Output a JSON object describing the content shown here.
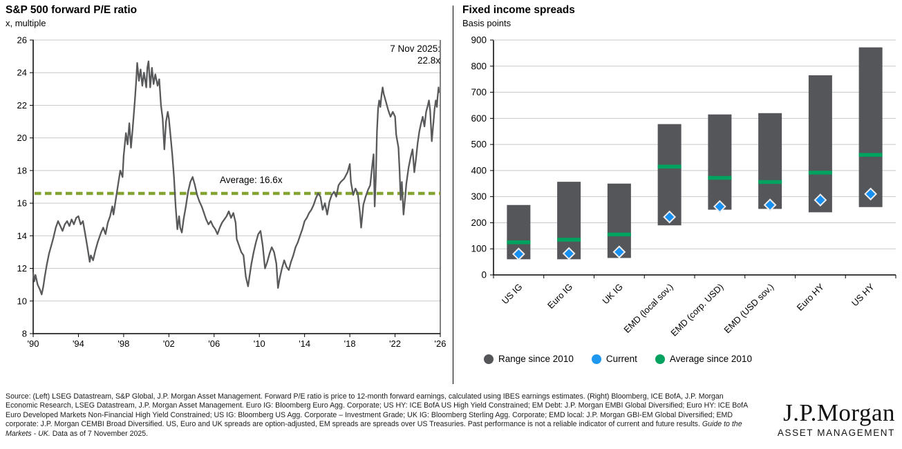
{
  "left_panel": {
    "title": "S&P 500 forward P/E ratio",
    "subtitle": "x, multiple",
    "annotation": {
      "line1": "7 Nov 2025:",
      "line2": "22.8x"
    },
    "average_label": "Average: 16.6x"
  },
  "right_panel": {
    "title": "Fixed income spreads",
    "subtitle": "Basis points",
    "legend": [
      {
        "label": "Range since 2010",
        "color": "#54565a"
      },
      {
        "label": "Current",
        "color": "#1e97f0"
      },
      {
        "label": "Average since 2010",
        "color": "#00a25f"
      }
    ]
  },
  "footer": {
    "source_text": "Source: (Left) LSEG Datastream, S&P Global, J.P. Morgan Asset Management. Forward P/E ratio is price to 12-month forward earnings, calculated using IBES earnings estimates. (Right) Bloomberg, ICE BofA, J.P. Morgan Economic Research, LSEG Datastream, J.P. Morgan Asset Management. Euro IG: Bloomberg Euro Agg. Corporate; US HY: ICE BofA US High Yield Constrained; EM Debt: J.P. Morgan EMBI Global Diversified; Euro HY: ICE BofA Euro Developed Markets Non-Financial High Yield Constrained; US IG: Bloomberg US Agg. Corporate – Investment Grade; UK IG: Bloomberg Sterling Agg. Corporate; EMD local: J.P. Morgan GBI-EM Global Diversified; EMD corporate: J.P. Morgan CEMBI Broad Diversified. US, Euro and UK spreads are option-adjusted, EM spreads are spreads over US Treasuries. Past performance is not a reliable indicator of current and future results. ",
    "italic_text": "Guide to the Markets - UK.",
    "closing_text": " Data as of 7 November 2025."
  },
  "logo": {
    "brand": "J.P.Morgan",
    "division": "ASSET MANAGEMENT"
  },
  "chart_data": [
    {
      "type": "line",
      "title": "S&P 500 forward P/E ratio",
      "ylabel": "x, multiple",
      "ylim": [
        8,
        26
      ],
      "ytick_step": 2,
      "xlim": [
        1990,
        2026
      ],
      "xtick_years": [
        1990,
        1994,
        1998,
        2002,
        2006,
        2010,
        2014,
        2018,
        2022,
        2026
      ],
      "xtick_labels": [
        "'90",
        "'94",
        "'98",
        "'02",
        "'06",
        "'10",
        "'14",
        "'18",
        "'22",
        "'26"
      ],
      "average": 16.6,
      "latest_date": "7 Nov 2025",
      "latest_value": 22.8,
      "grid": true,
      "colors": {
        "line": "#58595b",
        "average_line": "#84a333",
        "grid": "#c8c9ca",
        "axis": "#000000"
      },
      "points": [
        [
          1990.0,
          11.7
        ],
        [
          1990.1,
          11.2
        ],
        [
          1990.2,
          11.6
        ],
        [
          1990.4,
          11.0
        ],
        [
          1990.6,
          10.7
        ],
        [
          1990.75,
          10.4
        ],
        [
          1990.9,
          10.9
        ],
        [
          1991.0,
          11.4
        ],
        [
          1991.2,
          12.2
        ],
        [
          1991.4,
          12.9
        ],
        [
          1991.6,
          13.4
        ],
        [
          1991.8,
          13.9
        ],
        [
          1992.0,
          14.5
        ],
        [
          1992.2,
          14.9
        ],
        [
          1992.4,
          14.6
        ],
        [
          1992.6,
          14.3
        ],
        [
          1992.8,
          14.7
        ],
        [
          1993.0,
          14.9
        ],
        [
          1993.2,
          14.6
        ],
        [
          1993.4,
          15.0
        ],
        [
          1993.6,
          14.7
        ],
        [
          1993.8,
          15.1
        ],
        [
          1994.0,
          15.2
        ],
        [
          1994.2,
          14.7
        ],
        [
          1994.4,
          14.9
        ],
        [
          1994.6,
          14.1
        ],
        [
          1994.8,
          13.3
        ],
        [
          1995.0,
          12.4
        ],
        [
          1995.1,
          12.8
        ],
        [
          1995.3,
          12.5
        ],
        [
          1995.5,
          13.1
        ],
        [
          1995.7,
          13.6
        ],
        [
          1996.0,
          14.2
        ],
        [
          1996.2,
          14.5
        ],
        [
          1996.4,
          14.1
        ],
        [
          1996.6,
          14.8
        ],
        [
          1996.8,
          15.2
        ],
        [
          1997.0,
          15.8
        ],
        [
          1997.1,
          15.3
        ],
        [
          1997.3,
          16.2
        ],
        [
          1997.5,
          17.1
        ],
        [
          1997.7,
          18.0
        ],
        [
          1997.9,
          17.6
        ],
        [
          1998.0,
          18.9
        ],
        [
          1998.2,
          20.3
        ],
        [
          1998.35,
          19.6
        ],
        [
          1998.5,
          20.9
        ],
        [
          1998.65,
          19.4
        ],
        [
          1998.8,
          20.6
        ],
        [
          1999.0,
          22.4
        ],
        [
          1999.1,
          23.4
        ],
        [
          1999.2,
          24.6
        ],
        [
          1999.35,
          23.5
        ],
        [
          1999.5,
          24.2
        ],
        [
          1999.65,
          23.2
        ],
        [
          1999.8,
          24.0
        ],
        [
          2000.0,
          23.1
        ],
        [
          2000.1,
          24.3
        ],
        [
          2000.2,
          24.7
        ],
        [
          2000.35,
          23.1
        ],
        [
          2000.5,
          24.3
        ],
        [
          2000.65,
          23.3
        ],
        [
          2000.8,
          23.9
        ],
        [
          2001.0,
          23.2
        ],
        [
          2001.15,
          23.6
        ],
        [
          2001.3,
          22.0
        ],
        [
          2001.45,
          21.2
        ],
        [
          2001.6,
          19.3
        ],
        [
          2001.75,
          21.0
        ],
        [
          2001.9,
          21.6
        ],
        [
          2002.0,
          21.2
        ],
        [
          2002.15,
          20.1
        ],
        [
          2002.3,
          19.0
        ],
        [
          2002.45,
          17.6
        ],
        [
          2002.6,
          15.8
        ],
        [
          2002.75,
          14.4
        ],
        [
          2002.9,
          15.2
        ],
        [
          2003.0,
          14.5
        ],
        [
          2003.15,
          14.2
        ],
        [
          2003.3,
          15.0
        ],
        [
          2003.5,
          15.8
        ],
        [
          2003.7,
          16.7
        ],
        [
          2003.9,
          17.3
        ],
        [
          2004.1,
          17.6
        ],
        [
          2004.3,
          17.1
        ],
        [
          2004.5,
          16.5
        ],
        [
          2004.7,
          16.1
        ],
        [
          2004.9,
          15.8
        ],
        [
          2005.1,
          15.4
        ],
        [
          2005.3,
          15.0
        ],
        [
          2005.5,
          14.7
        ],
        [
          2005.7,
          14.9
        ],
        [
          2005.9,
          14.6
        ],
        [
          2006.1,
          14.4
        ],
        [
          2006.3,
          14.1
        ],
        [
          2006.5,
          14.5
        ],
        [
          2006.7,
          14.8
        ],
        [
          2006.9,
          15.0
        ],
        [
          2007.1,
          15.2
        ],
        [
          2007.3,
          15.5
        ],
        [
          2007.5,
          15.1
        ],
        [
          2007.7,
          15.4
        ],
        [
          2007.9,
          14.8
        ],
        [
          2008.0,
          13.8
        ],
        [
          2008.2,
          13.4
        ],
        [
          2008.4,
          13.0
        ],
        [
          2008.6,
          12.8
        ],
        [
          2008.8,
          11.5
        ],
        [
          2009.0,
          10.9
        ],
        [
          2009.15,
          11.6
        ],
        [
          2009.3,
          12.3
        ],
        [
          2009.5,
          13.0
        ],
        [
          2009.7,
          13.6
        ],
        [
          2009.9,
          14.1
        ],
        [
          2010.1,
          14.3
        ],
        [
          2010.3,
          13.4
        ],
        [
          2010.5,
          12.0
        ],
        [
          2010.7,
          12.4
        ],
        [
          2010.9,
          12.9
        ],
        [
          2011.1,
          13.3
        ],
        [
          2011.3,
          13.0
        ],
        [
          2011.5,
          12.3
        ],
        [
          2011.65,
          10.8
        ],
        [
          2011.8,
          11.4
        ],
        [
          2012.0,
          12.0
        ],
        [
          2012.2,
          12.5
        ],
        [
          2012.4,
          12.1
        ],
        [
          2012.6,
          11.9
        ],
        [
          2012.8,
          12.4
        ],
        [
          2013.0,
          12.8
        ],
        [
          2013.2,
          13.3
        ],
        [
          2013.4,
          13.6
        ],
        [
          2013.6,
          14.0
        ],
        [
          2013.8,
          14.4
        ],
        [
          2014.0,
          14.9
        ],
        [
          2014.2,
          15.1
        ],
        [
          2014.4,
          15.4
        ],
        [
          2014.6,
          15.6
        ],
        [
          2014.8,
          15.9
        ],
        [
          2015.0,
          16.3
        ],
        [
          2015.2,
          16.6
        ],
        [
          2015.4,
          16.4
        ],
        [
          2015.6,
          15.6
        ],
        [
          2015.8,
          16.0
        ],
        [
          2016.0,
          15.3
        ],
        [
          2016.2,
          16.1
        ],
        [
          2016.4,
          16.5
        ],
        [
          2016.6,
          16.7
        ],
        [
          2016.8,
          16.4
        ],
        [
          2017.0,
          17.1
        ],
        [
          2017.2,
          17.3
        ],
        [
          2017.5,
          17.5
        ],
        [
          2017.8,
          17.9
        ],
        [
          2018.0,
          18.4
        ],
        [
          2018.1,
          17.3
        ],
        [
          2018.3,
          16.5
        ],
        [
          2018.5,
          16.9
        ],
        [
          2018.7,
          16.6
        ],
        [
          2018.9,
          15.4
        ],
        [
          2019.0,
          14.5
        ],
        [
          2019.2,
          15.9
        ],
        [
          2019.4,
          16.4
        ],
        [
          2019.6,
          16.8
        ],
        [
          2019.8,
          17.1
        ],
        [
          2020.0,
          18.4
        ],
        [
          2020.1,
          19.0
        ],
        [
          2020.2,
          15.8
        ],
        [
          2020.3,
          17.5
        ],
        [
          2020.4,
          20.4
        ],
        [
          2020.5,
          21.8
        ],
        [
          2020.6,
          22.3
        ],
        [
          2020.7,
          21.9
        ],
        [
          2020.8,
          22.6
        ],
        [
          2020.9,
          23.1
        ],
        [
          2021.0,
          22.7
        ],
        [
          2021.2,
          22.2
        ],
        [
          2021.4,
          21.7
        ],
        [
          2021.6,
          21.3
        ],
        [
          2021.8,
          21.6
        ],
        [
          2022.0,
          21.3
        ],
        [
          2022.1,
          20.2
        ],
        [
          2022.3,
          19.4
        ],
        [
          2022.4,
          18.0
        ],
        [
          2022.5,
          16.2
        ],
        [
          2022.6,
          17.3
        ],
        [
          2022.75,
          15.3
        ],
        [
          2022.9,
          16.4
        ],
        [
          2023.0,
          17.2
        ],
        [
          2023.2,
          18.2
        ],
        [
          2023.4,
          18.9
        ],
        [
          2023.55,
          19.3
        ],
        [
          2023.7,
          17.9
        ],
        [
          2023.85,
          18.7
        ],
        [
          2024.0,
          19.7
        ],
        [
          2024.15,
          20.4
        ],
        [
          2024.3,
          20.9
        ],
        [
          2024.45,
          21.3
        ],
        [
          2024.6,
          20.7
        ],
        [
          2024.75,
          21.6
        ],
        [
          2024.9,
          22.0
        ],
        [
          2025.0,
          22.3
        ],
        [
          2025.1,
          21.7
        ],
        [
          2025.25,
          19.8
        ],
        [
          2025.4,
          21.0
        ],
        [
          2025.5,
          21.8
        ],
        [
          2025.6,
          22.3
        ],
        [
          2025.7,
          21.9
        ],
        [
          2025.75,
          22.4
        ],
        [
          2025.85,
          23.1
        ],
        [
          2025.87,
          22.8
        ]
      ]
    },
    {
      "type": "bar",
      "subtype": "floating-range",
      "title": "Fixed income spreads",
      "ylabel": "Basis points",
      "ylim": [
        0,
        900
      ],
      "ytick_step": 100,
      "grid": true,
      "legend_position": "bottom",
      "categories": [
        "US IG",
        "Euro IG",
        "UK IG",
        "EMD (local sov.)",
        "EMD (corp. USD)",
        "EMD (USD sov.)",
        "Euro HY",
        "US HY"
      ],
      "series": [
        {
          "name": "Range since 2010 (min)",
          "values": [
            60,
            60,
            65,
            190,
            250,
            253,
            240,
            260
          ]
        },
        {
          "name": "Range since 2010 (max)",
          "values": [
            268,
            357,
            350,
            578,
            615,
            620,
            765,
            872
          ]
        },
        {
          "name": "Average since 2010",
          "values": [
            125,
            135,
            155,
            415,
            372,
            356,
            392,
            460
          ]
        },
        {
          "name": "Current",
          "values": [
            80,
            82,
            88,
            222,
            262,
            268,
            287,
            310
          ]
        }
      ],
      "colors": {
        "range": "#54565a",
        "current": "#1790f4",
        "average": "#00a25f",
        "grid": "#c8c9ca",
        "axis": "#000000"
      }
    }
  ]
}
